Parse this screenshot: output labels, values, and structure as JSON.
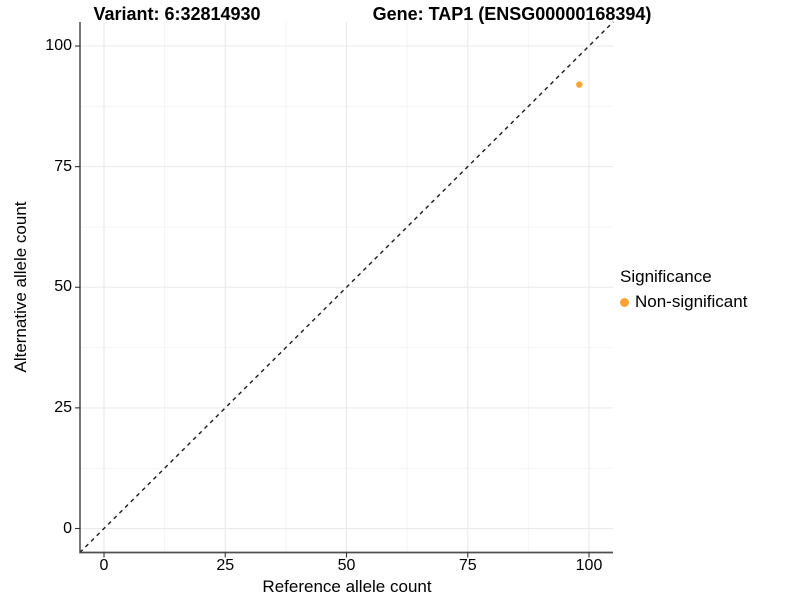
{
  "chart_data": {
    "type": "scatter",
    "title_left": "Variant: 6:32814930",
    "title_right": "Gene: TAP1 (ENSG00000168394)",
    "xlabel": "Reference allele count",
    "ylabel": "Alternative allele count",
    "xlim": [
      -5,
      105
    ],
    "ylim": [
      -5,
      105
    ],
    "x_ticks": [
      0,
      25,
      50,
      75,
      100
    ],
    "y_ticks": [
      0,
      25,
      50,
      75,
      100
    ],
    "x_minor_ticks": [
      12.5,
      37.5,
      62.5,
      87.5
    ],
    "y_minor_ticks": [
      12.5,
      37.5,
      62.5,
      87.5
    ],
    "grid": true,
    "legend": {
      "title": "Significance",
      "position": "right",
      "items": [
        {
          "label": "Non-significant",
          "color": "#FBA338"
        }
      ]
    },
    "identity_line": {
      "style": "dashed",
      "from": [
        -5,
        -5
      ],
      "to": [
        105,
        105
      ],
      "color": "#1a1a1a"
    },
    "series": [
      {
        "name": "Non-significant",
        "color": "#FBA338",
        "points": [
          {
            "x": 98,
            "y": 92
          }
        ]
      }
    ],
    "colors": {
      "point": "#FBA338",
      "grid_major": "#e9e9e9",
      "grid_minor": "#f4f4f4",
      "axis_line_left": "#1f1f1f",
      "axis_line_bottom": "#4f4f4f",
      "tick_mark": "#333333",
      "background": "#ffffff"
    }
  }
}
